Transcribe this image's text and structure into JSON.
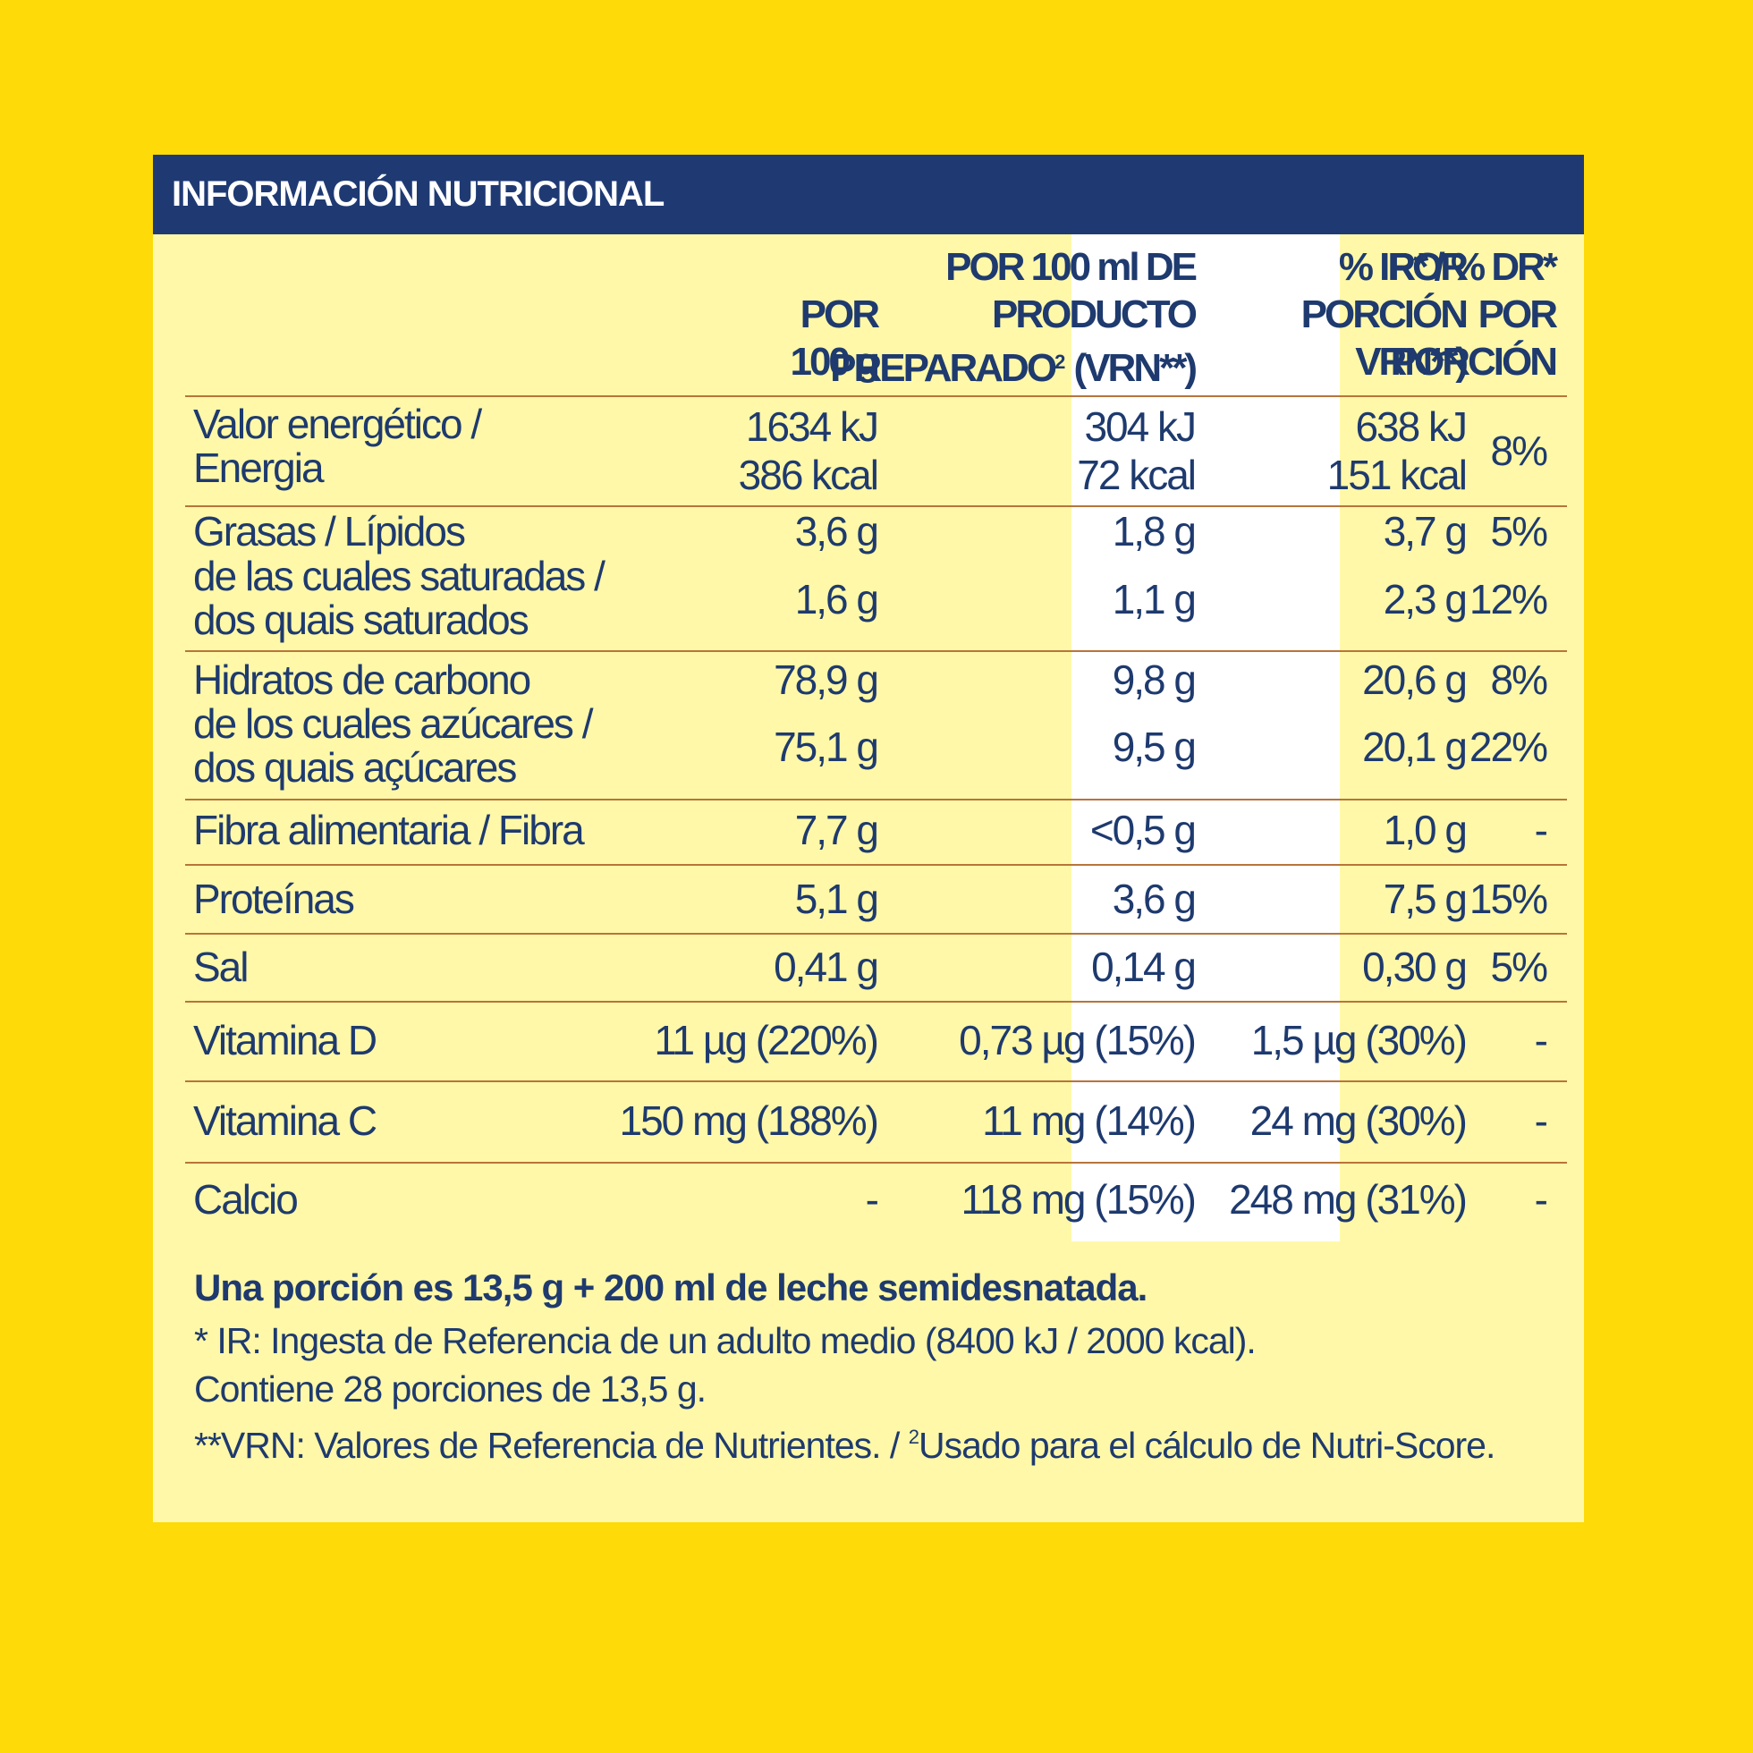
{
  "title": "INFORMACIÓN NUTRICIONAL",
  "columns": {
    "c1": [
      "POR",
      "100 g"
    ],
    "c2_line1": "POR 100 ml DE",
    "c2_line2": "PRODUCTO",
    "c2_line3a": "PREPARADO",
    "c2_line3sup": "2",
    "c2_line3b": " (VRN**)",
    "c3": [
      "POR",
      "PORCIÓN",
      "VRN**)"
    ],
    "c4": [
      "% IR* / % DR*",
      "POR",
      "PORCIÓN"
    ]
  },
  "rows": {
    "energy": {
      "label": [
        "Valor energético /",
        "Energia"
      ],
      "c1": [
        "1634 kJ",
        "386 kcal"
      ],
      "c2": [
        "304 kJ",
        "72 kcal"
      ],
      "c3": [
        "638 kJ",
        "151 kcal"
      ],
      "c4": "8%"
    },
    "fat": {
      "label": "Grasas / Lípidos",
      "c1": "3,6 g",
      "c2": "1,8 g",
      "c3": "3,7 g",
      "c4": "5%"
    },
    "saturated": {
      "label": [
        "de las cuales saturadas /",
        "dos quais saturados"
      ],
      "c1": "1,6 g",
      "c2": "1,1 g",
      "c3": "2,3 g",
      "c4": "12%"
    },
    "carbs": {
      "label": "Hidratos de carbono",
      "c1": "78,9 g",
      "c2": "9,8 g",
      "c3": "20,6 g",
      "c4": "8%"
    },
    "sugars": {
      "label": [
        "de los cuales azúcares /",
        "dos quais açúcares"
      ],
      "c1": "75,1 g",
      "c2": "9,5 g",
      "c3": "20,1 g",
      "c4": "22%"
    },
    "fibre": {
      "label": "Fibra alimentaria / Fibra",
      "c1": "7,7 g",
      "c2": "<0,5 g",
      "c3": "1,0 g",
      "c4": "-"
    },
    "protein": {
      "label": "Proteínas",
      "c1": "5,1 g",
      "c2": "3,6 g",
      "c3": "7,5 g",
      "c4": "15%"
    },
    "salt": {
      "label": "Sal",
      "c1": "0,41 g",
      "c2": "0,14 g",
      "c3": "0,30 g",
      "c4": "5%"
    },
    "vitd": {
      "label": "Vitamina D",
      "c1": "11 µg (220%)",
      "c2": "0,73 µg (15%)",
      "c3": "1,5 µg (30%)",
      "c4": "-"
    },
    "vitc": {
      "label": "Vitamina C",
      "c1": "150 mg (188%)",
      "c2": "11 mg (14%)",
      "c3": "24 mg (30%)",
      "c4": "-"
    },
    "calcium": {
      "label": "Calcio",
      "c1": "-",
      "c2": "118 mg (15%)",
      "c3": "248 mg (31%)",
      "c4": "-"
    }
  },
  "footer": {
    "portion": "Una porción es 13,5 g + 200 ml de leche semidesnatada.",
    "ir": "* IR: Ingesta de Referencia de un adulto medio (8400 kJ / 2000 kcal).",
    "contains": "Contiene 28 porciones de 13,5 g.",
    "vrn_a": "**VRN: Valores de Referencia de Nutrientes. / ",
    "vrn_sup": "2",
    "vrn_b": "Usado para el cálculo de Nutri-Score."
  },
  "colors": {
    "background": "#FDDA08",
    "panel": "#FFF8A8",
    "header": "#1F3A73",
    "text": "#1E3A6E",
    "divider": "#B8743A"
  }
}
